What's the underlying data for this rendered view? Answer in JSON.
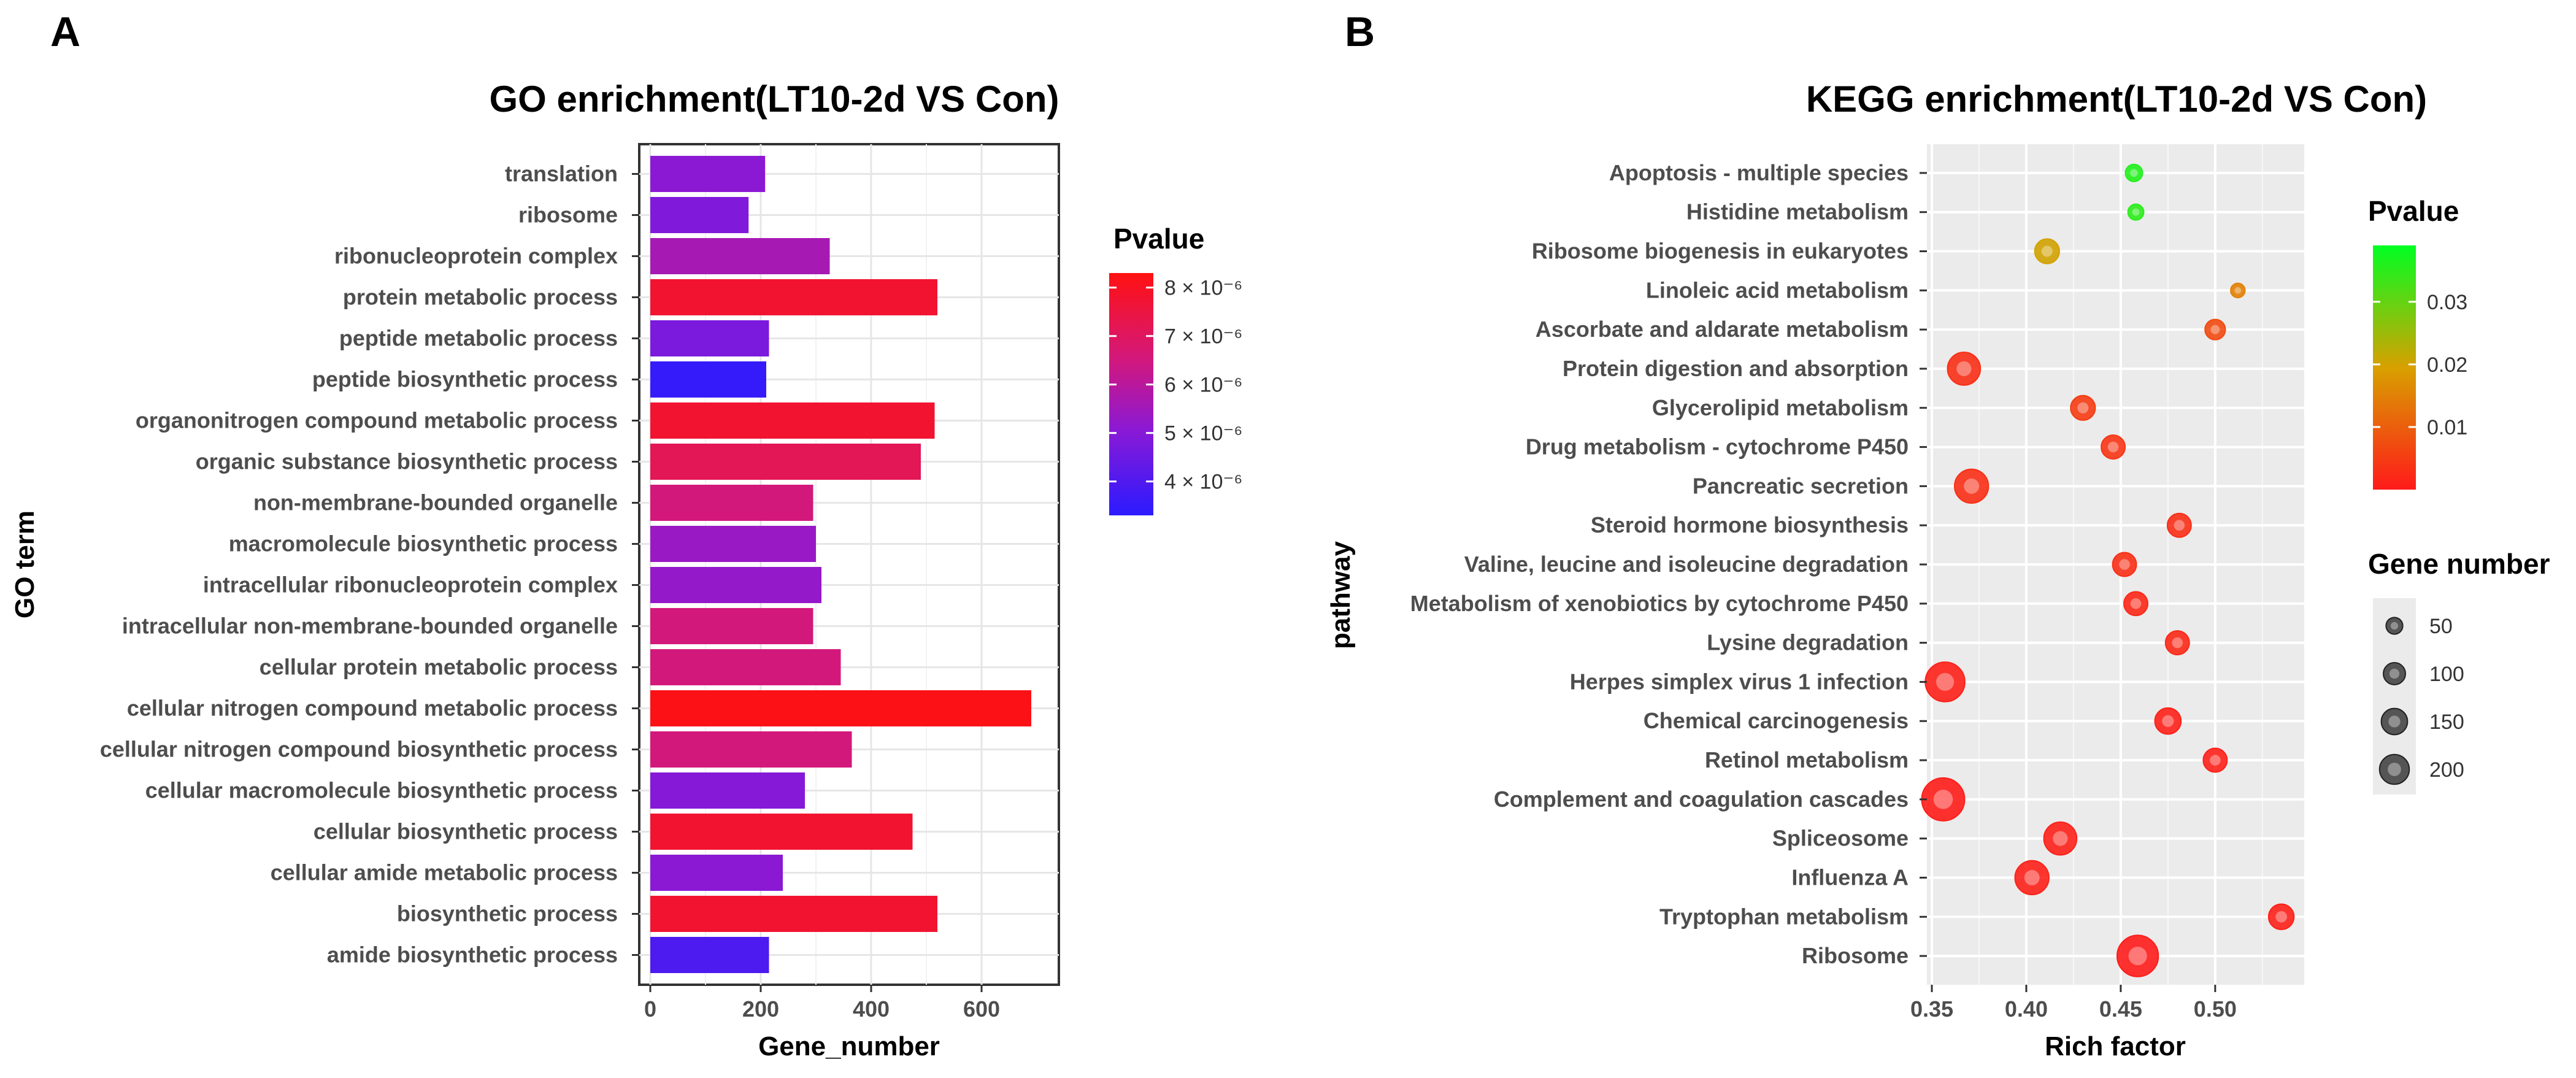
{
  "panels": {
    "a": "A",
    "b": "B"
  },
  "chart_data": [
    {
      "type": "bar",
      "orientation": "horizontal",
      "title": "GO enrichment(LT10-2d  VS Con)",
      "xlabel": "Gene_number",
      "ylabel": "GO term",
      "xlim": [
        0,
        720
      ],
      "xticks": [
        0,
        200,
        400,
        600
      ],
      "categories": [
        "translation",
        "ribosome",
        "ribonucleoprotein complex",
        "protein metabolic process",
        "peptide metabolic process",
        "peptide biosynthetic process",
        "organonitrogen compound metabolic process",
        "organic substance biosynthetic process",
        "non-membrane-bounded organelle",
        "macromolecule biosynthetic process",
        "intracellular ribonucleoprotein complex",
        "intracellular non-membrane-bounded organelle",
        "cellular protein metabolic process",
        "cellular nitrogen compound metabolic process",
        "cellular nitrogen compound biosynthetic process",
        "cellular macromolecule biosynthetic process",
        "cellular biosynthetic process",
        "cellular amide metabolic process",
        "biosynthetic process",
        "amide biosynthetic process"
      ],
      "values": [
        208,
        178,
        325,
        520,
        215,
        210,
        515,
        490,
        295,
        300,
        310,
        295,
        345,
        690,
        365,
        280,
        475,
        240,
        520,
        215
      ],
      "pvalues": [
        5e-06,
        4.8e-06,
        5.6e-06,
        7.8e-06,
        4.7e-06,
        3.5e-06,
        7.8e-06,
        7.2e-06,
        6.6e-06,
        5.3e-06,
        5.2e-06,
        6.6e-06,
        6.6e-06,
        8.2e-06,
        6.6e-06,
        4.9e-06,
        7.8e-06,
        5e-06,
        7.8e-06,
        3.9e-06
      ],
      "legend": {
        "title": "Pvalue",
        "range": [
          3.3e-06,
          8.3e-06
        ],
        "ticks": [
          {
            "value": 8e-06,
            "label": "8 × 10⁻⁶"
          },
          {
            "value": 7e-06,
            "label": "7 × 10⁻⁶"
          },
          {
            "value": 6e-06,
            "label": "6 × 10⁻⁶"
          },
          {
            "value": 5e-06,
            "label": "5 × 10⁻⁶"
          },
          {
            "value": 4e-06,
            "label": "4 × 10⁻⁶"
          }
        ],
        "colors": [
          "#2b1bff",
          "#ff1111"
        ]
      }
    },
    {
      "type": "scatter",
      "title": "KEGG enrichment(LT10-2d  VS Con)",
      "xlabel": "Rich factor",
      "ylabel": "pathway",
      "xlim": [
        0.35,
        0.54
      ],
      "xticks": [
        0.35,
        0.4,
        0.45,
        0.5
      ],
      "xticklabels": [
        "0.35",
        "0.40",
        "0.45",
        "0.50"
      ],
      "categories": [
        "Apoptosis - multiple species",
        "Histidine metabolism",
        "Ribosome biogenesis in eukaryotes",
        "Linoleic acid metabolism",
        "Ascorbate and aldarate metabolism",
        "Protein digestion and absorption",
        "Glycerolipid metabolism",
        "Drug metabolism - cytochrome P450",
        "Pancreatic secretion",
        "Steroid hormone biosynthesis",
        "Valine, leucine and isoleucine degradation",
        "Metabolism of xenobiotics by cytochrome P450",
        "Lysine degradation",
        "Herpes simplex virus 1 infection",
        "Chemical carcinogenesis",
        "Retinol metabolism",
        "Complement and coagulation cascades",
        "Spliceosome",
        "Influenza A",
        "Tryptophan metabolism",
        "Ribosome"
      ],
      "points": [
        {
          "x": 0.457,
          "p": 0.036,
          "genes": 25
        },
        {
          "x": 0.458,
          "p": 0.035,
          "genes": 20
        },
        {
          "x": 0.411,
          "p": 0.02,
          "genes": 65
        },
        {
          "x": 0.512,
          "p": 0.015,
          "genes": 15
        },
        {
          "x": 0.5,
          "p": 0.007,
          "genes": 40
        },
        {
          "x": 0.367,
          "p": 0.003,
          "genes": 130
        },
        {
          "x": 0.43,
          "p": 0.005,
          "genes": 65
        },
        {
          "x": 0.446,
          "p": 0.004,
          "genes": 60
        },
        {
          "x": 0.371,
          "p": 0.003,
          "genes": 140
        },
        {
          "x": 0.481,
          "p": 0.003,
          "genes": 60
        },
        {
          "x": 0.452,
          "p": 0.003,
          "genes": 60
        },
        {
          "x": 0.458,
          "p": 0.002,
          "genes": 60
        },
        {
          "x": 0.48,
          "p": 0.002,
          "genes": 60
        },
        {
          "x": 0.357,
          "p": 0.001,
          "genes": 200
        },
        {
          "x": 0.475,
          "p": 0.001,
          "genes": 75
        },
        {
          "x": 0.5,
          "p": 0.001,
          "genes": 60
        },
        {
          "x": 0.356,
          "p": 0.0005,
          "genes": 240
        },
        {
          "x": 0.418,
          "p": 0.001,
          "genes": 130
        },
        {
          "x": 0.403,
          "p": 0.001,
          "genes": 140
        },
        {
          "x": 0.535,
          "p": 0.001,
          "genes": 70
        },
        {
          "x": 0.459,
          "p": 0.0003,
          "genes": 220
        }
      ],
      "color_legend": {
        "title": "Pvalue",
        "range": [
          0,
          0.039
        ],
        "ticks": [
          {
            "value": 0.03,
            "label": "0.03"
          },
          {
            "value": 0.02,
            "label": "0.02"
          },
          {
            "value": 0.01,
            "label": "0.01"
          }
        ],
        "colors": [
          "#ff1a1a",
          "#d8a000",
          "#00ff22"
        ]
      },
      "size_legend": {
        "title": "Gene number",
        "items": [
          {
            "value": 50,
            "label": "50"
          },
          {
            "value": 100,
            "label": "100"
          },
          {
            "value": 150,
            "label": "150"
          },
          {
            "value": 200,
            "label": "200"
          }
        ]
      }
    }
  ]
}
